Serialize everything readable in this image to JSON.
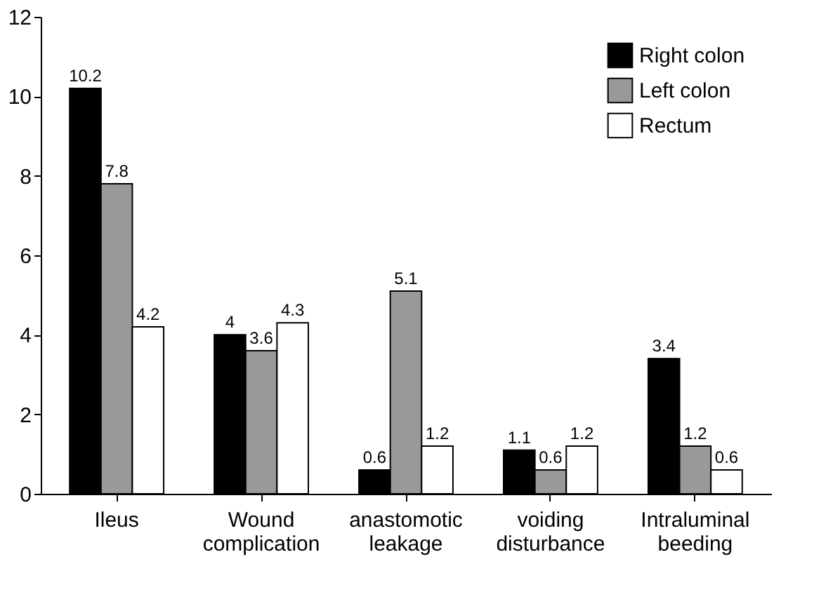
{
  "chart_data": {
    "type": "bar",
    "categories": [
      "Ileus",
      "Wound complication",
      "anastomotic leakage",
      "voiding disturbance",
      "Intraluminal beeding"
    ],
    "series": [
      {
        "name": "Right colon",
        "color": "#000000",
        "values": [
          10.2,
          4,
          0.6,
          1.1,
          3.4
        ]
      },
      {
        "name": "Left colon",
        "color": "#999999",
        "values": [
          7.8,
          3.6,
          5.1,
          0.6,
          1.2
        ]
      },
      {
        "name": "Rectum",
        "color": "#ffffff",
        "values": [
          4.2,
          4.3,
          1.2,
          1.2,
          0.6
        ]
      }
    ],
    "ylim": [
      0,
      12
    ],
    "yticks": [
      0,
      2,
      4,
      6,
      8,
      10,
      12
    ],
    "grid": false,
    "legend": "top right",
    "data_labels": true
  }
}
